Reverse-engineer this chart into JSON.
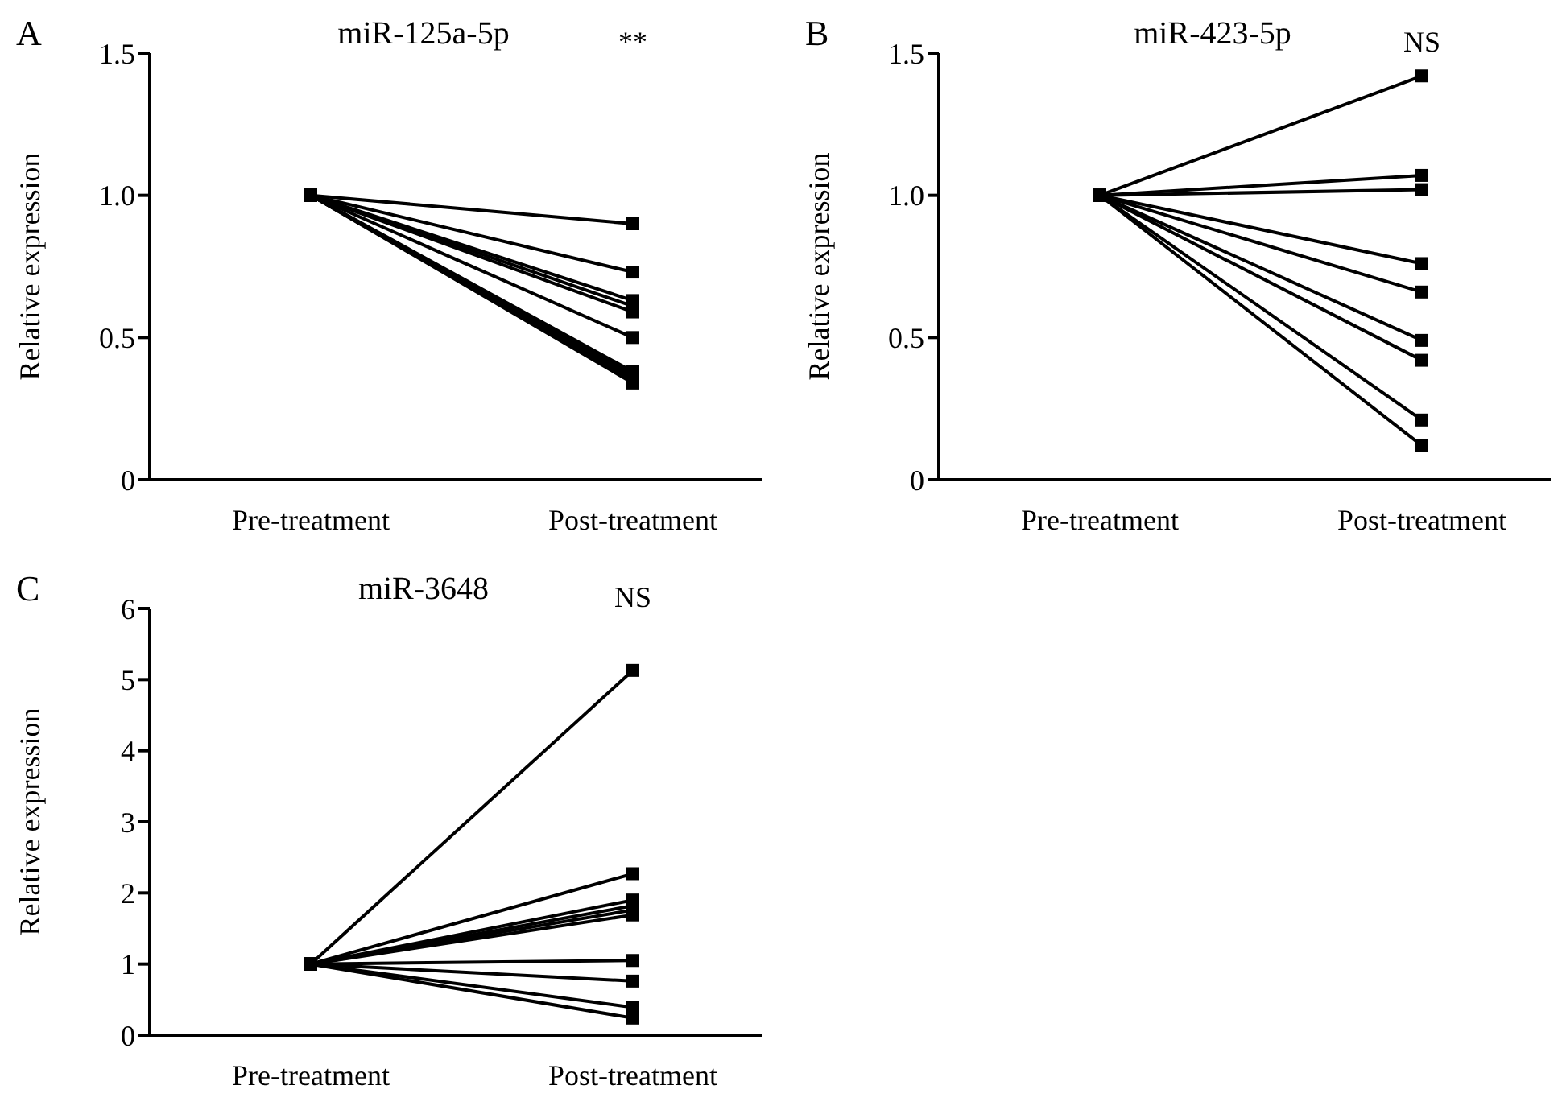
{
  "chart_data": [
    {
      "type": "line",
      "title": "miR-125a-5p",
      "ylabel": "Relative expression",
      "categories": [
        "Pre-treatment",
        "Post-treatment"
      ],
      "marker": "square",
      "ylim": [
        0,
        1.5
      ],
      "yticks": [
        0,
        0.5,
        {
          "value": 1,
          "label": "1.0"
        },
        1.5
      ],
      "annotations": [
        "A",
        "**"
      ],
      "series": [
        {
          "color": "#000000",
          "values": [
            1,
            0.9
          ]
        },
        {
          "color": "#000000",
          "values": [
            1,
            0.73
          ]
        },
        {
          "color": "#000000",
          "values": [
            1,
            0.63
          ]
        },
        {
          "color": "#000000",
          "values": [
            1,
            0.61
          ]
        },
        {
          "color": "#000000",
          "values": [
            1,
            0.59
          ]
        },
        {
          "color": "#000000",
          "values": [
            1,
            0.5
          ]
        },
        {
          "color": "#000000",
          "values": [
            1,
            0.38
          ]
        },
        {
          "color": "#000000",
          "values": [
            1,
            0.37
          ]
        },
        {
          "color": "#000000",
          "values": [
            1,
            0.36
          ]
        },
        {
          "color": "#000000",
          "values": [
            1,
            0.35
          ]
        },
        {
          "color": "#000000",
          "values": [
            1,
            0.34
          ]
        }
      ]
    },
    {
      "type": "line",
      "title": "miR-423-5p",
      "ylabel": "Relative expression",
      "categories": [
        "Pre-treatment",
        "Post-treatment"
      ],
      "marker": "square",
      "ylim": [
        0,
        1.5
      ],
      "yticks": [
        0,
        0.5,
        {
          "value": 1,
          "label": "1.0"
        },
        1.5
      ],
      "annotations": [
        "B",
        "NS"
      ],
      "series": [
        {
          "color": "#000000",
          "values": [
            1,
            1.42
          ]
        },
        {
          "color": "#000000",
          "values": [
            1,
            1.07
          ]
        },
        {
          "color": "#000000",
          "values": [
            1,
            1.02
          ]
        },
        {
          "color": "#000000",
          "values": [
            1,
            0.76
          ]
        },
        {
          "color": "#000000",
          "values": [
            1,
            0.66
          ]
        },
        {
          "color": "#000000",
          "values": [
            1,
            0.49
          ]
        },
        {
          "color": "#000000",
          "values": [
            1,
            0.42
          ]
        },
        {
          "color": "#000000",
          "values": [
            1,
            0.21
          ]
        },
        {
          "color": "#000000",
          "values": [
            1,
            0.12
          ]
        }
      ]
    },
    {
      "type": "line",
      "title": "miR-3648",
      "ylabel": "Relative expression",
      "categories": [
        "Pre-treatment",
        "Post-treatment"
      ],
      "marker": "square",
      "ylim": [
        0,
        6
      ],
      "yticks": [
        0,
        1,
        2,
        3,
        4,
        5,
        6
      ],
      "annotations": [
        "C",
        "NS"
      ],
      "series": [
        {
          "color": "#000000",
          "values": [
            1,
            5.13
          ]
        },
        {
          "color": "#000000",
          "values": [
            1,
            2.27
          ]
        },
        {
          "color": "#000000",
          "values": [
            1,
            1.9
          ]
        },
        {
          "color": "#000000",
          "values": [
            1,
            1.82
          ]
        },
        {
          "color": "#000000",
          "values": [
            1,
            1.76
          ]
        },
        {
          "color": "#000000",
          "values": [
            1,
            1.69
          ]
        },
        {
          "color": "#000000",
          "values": [
            1,
            1.05
          ]
        },
        {
          "color": "#000000",
          "values": [
            1,
            0.76
          ]
        },
        {
          "color": "#000000",
          "values": [
            1,
            0.39
          ]
        },
        {
          "color": "#000000",
          "values": [
            1,
            0.24
          ]
        }
      ]
    }
  ]
}
